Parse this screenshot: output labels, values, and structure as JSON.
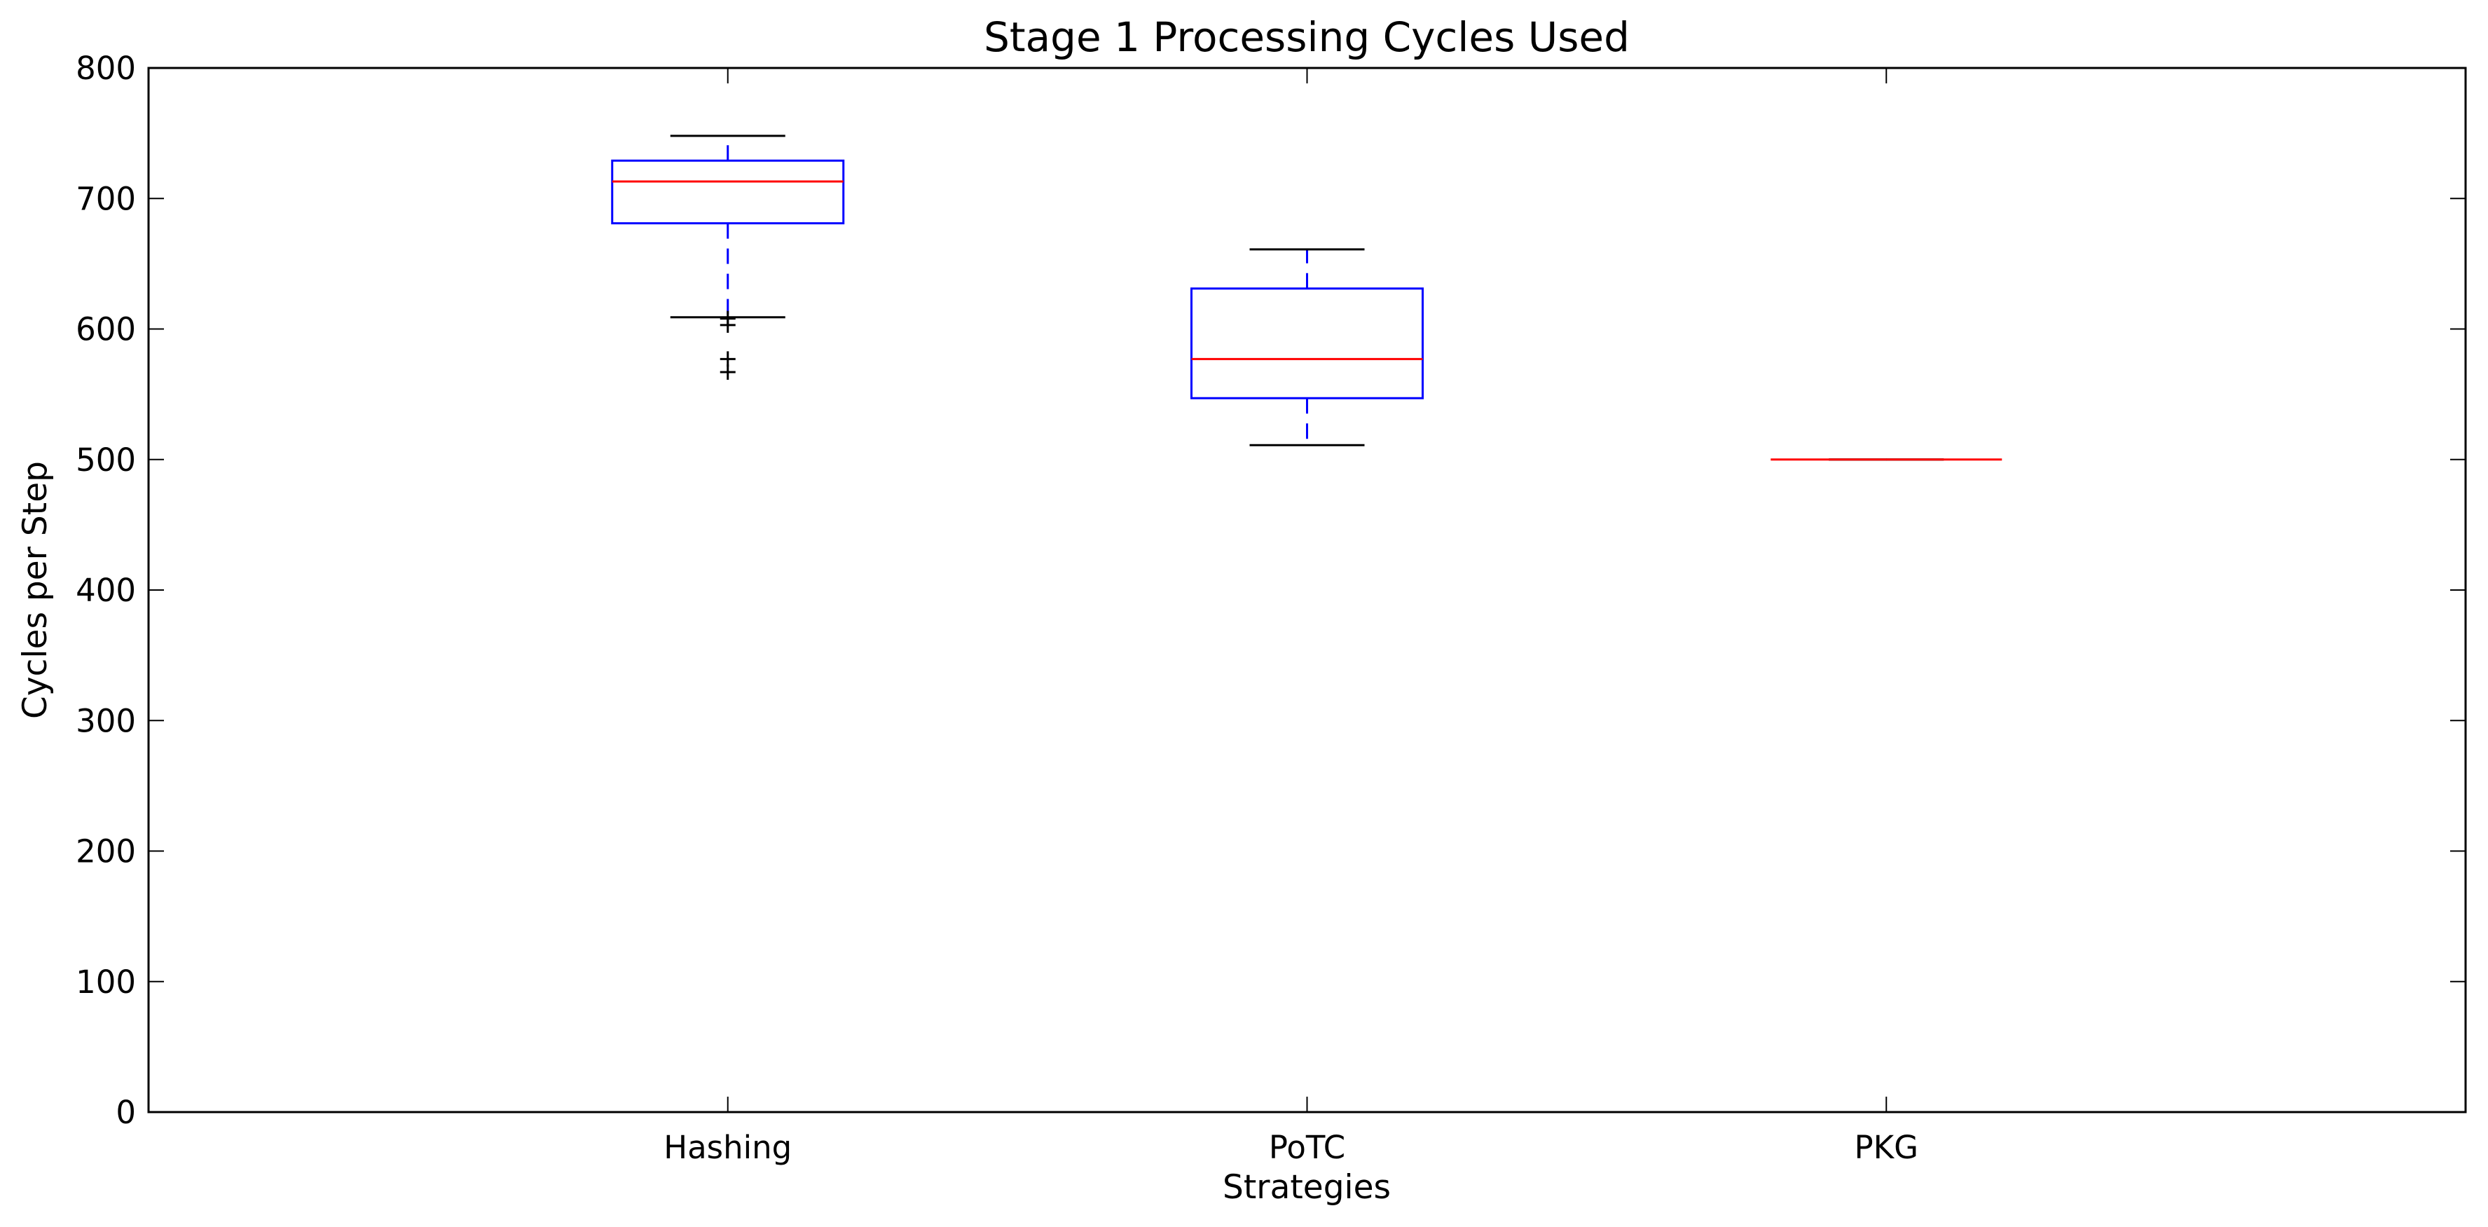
{
  "chart_data": {
    "type": "box",
    "title": "Stage 1 Processing Cycles Used",
    "xlabel": "Strategies",
    "ylabel": "Cycles per Step",
    "ylim": [
      0,
      800
    ],
    "yticks": [
      0,
      100,
      200,
      300,
      400,
      500,
      600,
      700,
      800
    ],
    "grid": false,
    "categories": [
      "Hashing",
      "PoTC",
      "PKG"
    ],
    "boxes": [
      {
        "category": "Hashing",
        "whisker_low": 609,
        "q1": 681,
        "median": 713,
        "q3": 729,
        "whisker_high": 748,
        "outliers": [
          608,
          603,
          577,
          567
        ]
      },
      {
        "category": "PoTC",
        "whisker_low": 511,
        "q1": 547,
        "median": 577,
        "q3": 631,
        "whisker_high": 661,
        "outliers": []
      },
      {
        "category": "PKG",
        "whisker_low": 500,
        "q1": 500,
        "median": 500,
        "q3": 500,
        "whisker_high": 500,
        "outliers": []
      }
    ],
    "colors": {
      "box": "#0000ff",
      "median": "#ff0000",
      "whisker": "#0000ff",
      "cap": "#000000",
      "outlier": "#000000",
      "axes": "#000000"
    }
  }
}
